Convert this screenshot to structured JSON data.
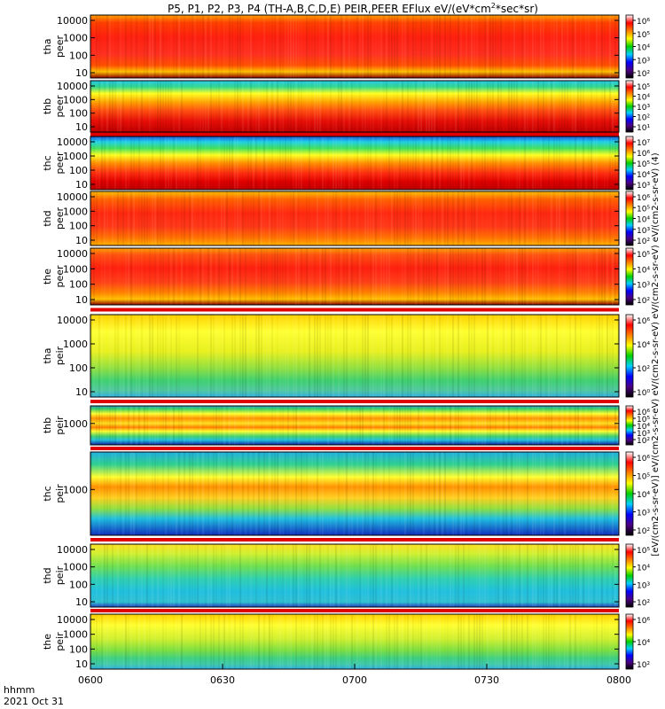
{
  "title": "P5, P1, P2, P3, P4 (TH-A,B,C,D,E) PEIR,PEER EFlux eV/(eV*cm",
  "title_sup": "2",
  "title_tail": "*sec*sr)",
  "colorbar_unit_label": "[eV/(cm2-s-sr-eV)] eV/(cm2-s-sr-eV) eV/(cm2-s-sr-eV) eV/(cm2-s-sr-eV) eV/(cm2-s-sr-eV) (4)",
  "footer": {
    "time_label": "hhmm",
    "date_label": "2021 Oct 31"
  },
  "colors": {
    "dark_red": "#8b0000",
    "red": "#e8000b",
    "orange": "#ff8c00",
    "yellow": "#ffff00",
    "green": "#2ed12e",
    "cyan": "#19c5e6",
    "blue": "#1f2fc9",
    "violet": "#4b0082"
  },
  "chart_data": {
    "type": "heatmap",
    "x_ticks": [
      "0600",
      "0630",
      "0700",
      "0730",
      "0800"
    ],
    "panels": [
      {
        "label1": "tha",
        "label2": "peer",
        "yticks": [
          "10000",
          "1000",
          "100",
          "10"
        ],
        "cbar": [
          "10⁶",
          "10⁵",
          "10⁴",
          "10³",
          "10²"
        ],
        "profile": [
          [
            0,
            "#ffa000"
          ],
          [
            0.12,
            "#ff4000"
          ],
          [
            0.35,
            "#ff2010"
          ],
          [
            0.62,
            "#ff3020"
          ],
          [
            0.8,
            "#ff5000"
          ],
          [
            0.9,
            "#ffc000"
          ],
          [
            1,
            "#8b0000"
          ]
        ]
      },
      {
        "label1": "thb",
        "label2": "peer",
        "yticks": [
          "10000",
          "1000",
          "100",
          "10"
        ],
        "cbar": [
          "10⁵",
          "10⁴",
          "10³",
          "10²",
          "10¹"
        ],
        "profile": [
          [
            0,
            "#28c8e8"
          ],
          [
            0.12,
            "#30d890"
          ],
          [
            0.25,
            "#ffff20"
          ],
          [
            0.42,
            "#ffa000"
          ],
          [
            0.58,
            "#ff5010"
          ],
          [
            0.78,
            "#e81008"
          ],
          [
            1,
            "#c00000"
          ]
        ]
      },
      {
        "label1": "thc",
        "label2": "peer",
        "yticks": [
          "10000",
          "1000",
          "100",
          "10"
        ],
        "cbar": [
          "10⁷",
          "10⁶",
          "10⁵",
          "10⁴",
          "10³"
        ],
        "profile": [
          [
            0,
            "#1c5be0"
          ],
          [
            0.1,
            "#20d0e8"
          ],
          [
            0.22,
            "#40e060"
          ],
          [
            0.35,
            "#ffff20"
          ],
          [
            0.5,
            "#ff9000"
          ],
          [
            0.68,
            "#ff3010"
          ],
          [
            0.85,
            "#e00000"
          ],
          [
            1,
            "#c00000"
          ]
        ]
      },
      {
        "label1": "thd",
        "label2": "peer",
        "yticks": [
          "10000",
          "1000",
          "100",
          "10"
        ],
        "cbar": [
          "10⁶",
          "10⁵",
          "10⁴",
          "10³",
          "10²"
        ],
        "profile": [
          [
            0,
            "#ffc000"
          ],
          [
            0.15,
            "#ff6000"
          ],
          [
            0.4,
            "#ff2810"
          ],
          [
            0.65,
            "#ff3818"
          ],
          [
            0.85,
            "#ff7000"
          ],
          [
            1,
            "#ffb000"
          ]
        ]
      },
      {
        "label1": "the",
        "label2": "peer",
        "yticks": [
          "10000",
          "1000",
          "100",
          "10"
        ],
        "cbar": [
          "10⁵",
          "10⁴",
          "10³",
          "10²"
        ],
        "profile": [
          [
            0,
            "#ffa000"
          ],
          [
            0.12,
            "#ff5010"
          ],
          [
            0.35,
            "#ff2010"
          ],
          [
            0.6,
            "#ff4018"
          ],
          [
            0.78,
            "#ff8000"
          ],
          [
            0.9,
            "#ffc000"
          ],
          [
            1,
            "#8b0000"
          ]
        ]
      },
      {
        "label1": "tha",
        "label2": "peir",
        "yticks": [
          "10000",
          "1000",
          "100",
          "10"
        ],
        "cbar": [
          "10⁶",
          "10⁴",
          "10²",
          "10⁰"
        ],
        "profile": [
          [
            0,
            "#ffd000"
          ],
          [
            0.2,
            "#ffff30"
          ],
          [
            0.45,
            "#e8f020"
          ],
          [
            0.65,
            "#90e040"
          ],
          [
            0.8,
            "#40d070"
          ],
          [
            0.92,
            "#50c8a0"
          ],
          [
            1,
            "#30b0e0"
          ]
        ]
      },
      {
        "label1": "thb",
        "label2": "peir",
        "yticks": [
          "1000"
        ],
        "cbar": [
          "10⁶",
          "10⁵",
          "10⁴",
          "10³",
          "10²"
        ],
        "profile": [
          [
            0,
            "#20a0d0"
          ],
          [
            0.08,
            "#40d060"
          ],
          [
            0.2,
            "#ffff30"
          ],
          [
            0.32,
            "#ff9000"
          ],
          [
            0.45,
            "#ffe020"
          ],
          [
            0.55,
            "#ff8000"
          ],
          [
            0.65,
            "#ffff30"
          ],
          [
            0.78,
            "#40d070"
          ],
          [
            0.88,
            "#20c0e0"
          ],
          [
            1,
            "#1020a0"
          ]
        ]
      },
      {
        "label1": "thc",
        "label2": "peir",
        "yticks": [
          "1000"
        ],
        "cbar": [
          "10⁶",
          "10⁵",
          "10⁴",
          "10³",
          "10²"
        ],
        "profile": [
          [
            0,
            "#20b0e0"
          ],
          [
            0.15,
            "#30d090"
          ],
          [
            0.3,
            "#ffff30"
          ],
          [
            0.42,
            "#ff9000"
          ],
          [
            0.55,
            "#ffd020"
          ],
          [
            0.68,
            "#90e040"
          ],
          [
            0.8,
            "#20c0e0"
          ],
          [
            1,
            "#1030c0"
          ]
        ]
      },
      {
        "label1": "thd",
        "label2": "peir",
        "yticks": [
          "10000",
          "1000",
          "100",
          "10"
        ],
        "cbar": [
          "10⁵",
          "10⁴",
          "10³",
          "10²"
        ],
        "profile": [
          [
            0,
            "#ffe020"
          ],
          [
            0.15,
            "#d0f030"
          ],
          [
            0.35,
            "#70e050"
          ],
          [
            0.55,
            "#30d0b0"
          ],
          [
            0.75,
            "#20c0e0"
          ],
          [
            0.92,
            "#30c0d0"
          ],
          [
            1,
            "#2040c0"
          ]
        ]
      },
      {
        "label1": "the",
        "label2": "peir",
        "yticks": [
          "10000",
          "1000",
          "100",
          "10"
        ],
        "cbar": [
          "10⁶",
          "10⁴",
          "10²"
        ],
        "profile": [
          [
            0,
            "#ffd000"
          ],
          [
            0.2,
            "#ffff30"
          ],
          [
            0.45,
            "#d0f030"
          ],
          [
            0.65,
            "#80e040"
          ],
          [
            0.8,
            "#40d080"
          ],
          [
            0.92,
            "#40c8b0"
          ],
          [
            1,
            "#30b0e0"
          ]
        ]
      }
    ],
    "colorbar_scale": [
      "#ffffff",
      "#ff0000",
      "#ff8000",
      "#ffff00",
      "#00d000",
      "#00d0ff",
      "#0000ff",
      "#4b0082",
      "#000000"
    ]
  }
}
